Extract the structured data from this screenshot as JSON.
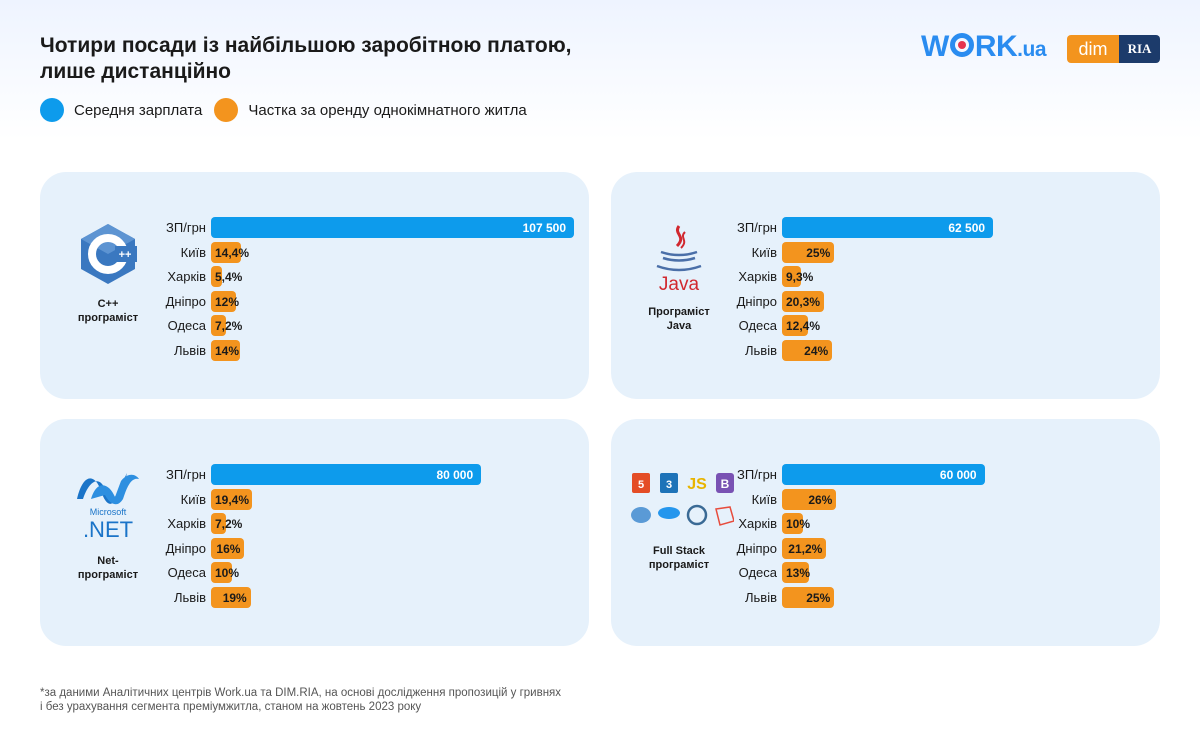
{
  "header": {
    "title_line1": "Чотири посади із найбільшою заробітною платою,",
    "title_line2": "лише дистанційно"
  },
  "legend": {
    "salary": "Середня зарплата",
    "rent": "Частка за оренду однокімнатного житла"
  },
  "logos": {
    "work_pre": "W",
    "work_post": "RK",
    "work_ua": ".ua",
    "dim": "dim",
    "ria": "RIA"
  },
  "colors": {
    "salary": "#0d9bec",
    "rent": "#f3941e",
    "card": "#e6f1fb"
  },
  "chart_data": [
    {
      "type": "bar",
      "role": "C++\nпрограміст",
      "icon": "cpp-logo-icon",
      "icon_text": "C++",
      "categories": [
        "ЗП/грн",
        "Київ",
        "Харків",
        "Дніпро",
        "Одеса",
        "Львів"
      ],
      "salary": 107500,
      "salary_label": "107 500",
      "rent_share": [
        14.4,
        5.4,
        12,
        7.2,
        14
      ],
      "rent_labels": [
        "14,4%",
        "5,4%",
        "12%",
        "7,2%",
        "14%"
      ]
    },
    {
      "type": "bar",
      "role": "Програміст\nJava",
      "icon": "java-logo-icon",
      "icon_text": "Java",
      "categories": [
        "ЗП/грн",
        "Київ",
        "Харків",
        "Дніпро",
        "Одеса",
        "Львів"
      ],
      "salary": 62500,
      "salary_label": "62 500",
      "rent_share": [
        25,
        9.3,
        20.3,
        12.4,
        24
      ],
      "rent_labels": [
        "25%",
        "9,3%",
        "20,3%",
        "12,4%",
        "24%"
      ]
    },
    {
      "type": "bar",
      "role": "Net-\nпрограміст",
      "icon": "dotnet-logo-icon",
      "icon_text": ".NET",
      "icon_subtext": "Microsoft",
      "categories": [
        "ЗП/грн",
        "Київ",
        "Харків",
        "Дніпро",
        "Одеса",
        "Львів"
      ],
      "salary": 80000,
      "salary_label": "80 000",
      "rent_share": [
        19.4,
        7.2,
        16,
        10,
        19
      ],
      "rent_labels": [
        "19,4%",
        "7,2%",
        "16%",
        "10%",
        "19%"
      ]
    },
    {
      "type": "bar",
      "role": "Full Stack\nпрограміст",
      "icon": "fullstack-logos-icon",
      "icon_text": "JS",
      "categories": [
        "ЗП/грн",
        "Київ",
        "Харків",
        "Дніпро",
        "Одеса",
        "Львів"
      ],
      "salary": 60000,
      "salary_label": "60 000",
      "rent_share": [
        26,
        10,
        21.2,
        13,
        25
      ],
      "rent_labels": [
        "26%",
        "10%",
        "21,2%",
        "13%",
        "25%"
      ]
    }
  ],
  "footnote": {
    "line1": "*за даними Аналітичних центрів Work.ua та DIM.RIA, на основі дослідження пропозицій у гривнях",
    "line2": "і без урахування сегмента преміумжитла, станом на жовтень 2023 року"
  }
}
